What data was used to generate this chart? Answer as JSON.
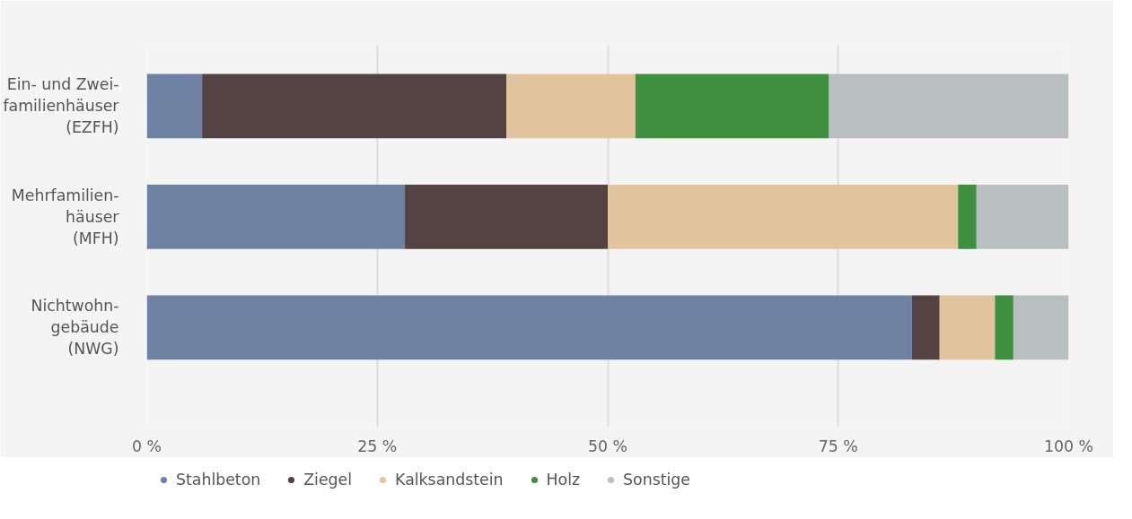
{
  "chart_data": {
    "type": "bar",
    "orientation": "horizontal",
    "stacked": true,
    "categories": [
      "Ein- und Zwei-\nfamilienhäuser\n(EZFH)",
      "Mehrfamilien-\nhäuser\n(MFH)",
      "Nichtwohn-\ngebäude\n(NWG)"
    ],
    "series": [
      {
        "name": "Stahlbeton",
        "color": "#6e82a3",
        "values": [
          6,
          28,
          83
        ]
      },
      {
        "name": "Ziegel",
        "color": "#544343",
        "values": [
          33,
          22,
          3
        ]
      },
      {
        "name": "Kalksandstein",
        "color": "#e1c49e",
        "values": [
          14,
          38,
          6
        ]
      },
      {
        "name": "Holz",
        "color": "#3f8f41",
        "values": [
          21,
          2,
          2
        ]
      },
      {
        "name": "Sonstige",
        "color": "#b9bec0",
        "values": [
          26,
          10,
          6
        ]
      }
    ],
    "xlim": [
      0,
      100
    ],
    "xticks": [
      {
        "value": 0,
        "label": "0 %"
      },
      {
        "value": 25,
        "label": "25 %"
      },
      {
        "value": 50,
        "label": "50 %"
      },
      {
        "value": 75,
        "label": "75 %"
      },
      {
        "value": 100,
        "label": "100 %"
      }
    ],
    "grid": "x",
    "legend": "bottom"
  }
}
